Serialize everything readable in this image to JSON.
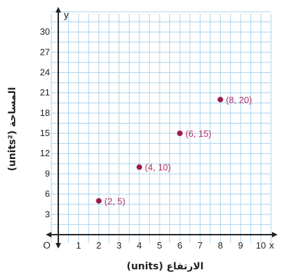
{
  "chart_data": {
    "type": "scatter",
    "title": "",
    "xlabel": "الارتفاع (units)",
    "ylabel": "المساحة (units²)",
    "x_axis_letter": "x",
    "y_axis_letter": "y",
    "origin_label": "O",
    "xlim": [
      0,
      10
    ],
    "ylim": [
      0,
      30
    ],
    "x_ticks": [
      1,
      2,
      3,
      4,
      5,
      6,
      7,
      8,
      9,
      10
    ],
    "y_ticks": [
      3,
      6,
      9,
      12,
      15,
      18,
      21,
      24,
      27,
      30
    ],
    "grid": true,
    "points": [
      {
        "x": 2,
        "y": 5,
        "label": "(2, 5)"
      },
      {
        "x": 4,
        "y": 10,
        "label": "(4, 10)"
      },
      {
        "x": 6,
        "y": 15,
        "label": "(6, 15)"
      },
      {
        "x": 8,
        "y": 20,
        "label": "(8, 20)"
      }
    ],
    "point_color": "#9b1b4a",
    "label_color": "#b0306a",
    "grid_color": "#a9d3ee",
    "axis_color": "#222222"
  }
}
